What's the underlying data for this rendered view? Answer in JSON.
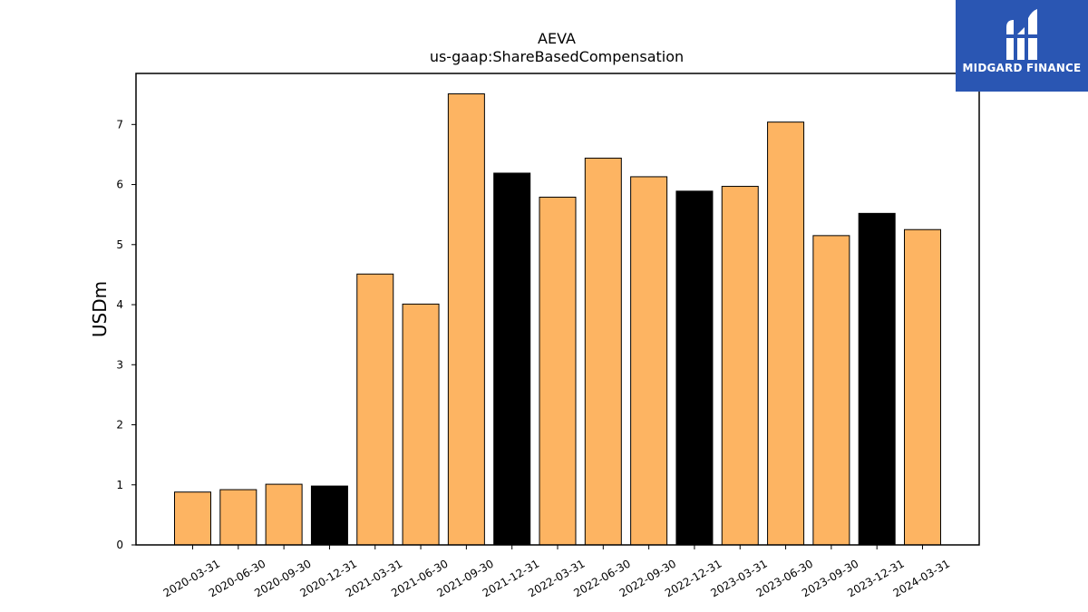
{
  "brand": {
    "name": "MIDGARD FINANCE",
    "bg_color": "#2a56b3",
    "icon": "midgard-logo-icon"
  },
  "chart_data": {
    "type": "bar",
    "title": "AEVA",
    "subtitle": "us-gaap:ShareBasedCompensation",
    "xlabel": "",
    "ylabel": "USDm",
    "ylim": [
      0,
      7.85
    ],
    "yticks": [
      0,
      1,
      2,
      3,
      4,
      5,
      6,
      7
    ],
    "grid": false,
    "categories": [
      "2020-03-31",
      "2020-06-30",
      "2020-09-30",
      "2020-12-31",
      "2021-03-31",
      "2021-06-30",
      "2021-09-30",
      "2021-12-31",
      "2022-03-31",
      "2022-06-30",
      "2022-09-30",
      "2022-12-31",
      "2023-03-31",
      "2023-06-30",
      "2023-09-30",
      "2023-12-31",
      "2024-03-31"
    ],
    "values": [
      0.88,
      0.92,
      1.01,
      0.98,
      4.51,
      4.01,
      7.51,
      6.19,
      5.79,
      6.44,
      6.13,
      5.89,
      5.97,
      7.04,
      5.15,
      5.52,
      5.25
    ],
    "colors": [
      "#fdb462",
      "#fdb462",
      "#fdb462",
      "#000000",
      "#fdb462",
      "#fdb462",
      "#fdb462",
      "#000000",
      "#fdb462",
      "#fdb462",
      "#fdb462",
      "#000000",
      "#fdb462",
      "#fdb462",
      "#fdb462",
      "#000000",
      "#fdb462"
    ],
    "bar_color": "#fdb462",
    "highlight_color": "#000000"
  }
}
